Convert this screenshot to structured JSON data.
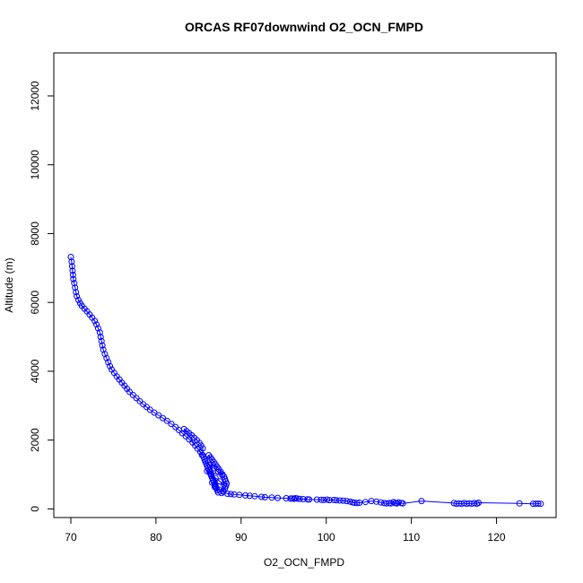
{
  "chart_data": {
    "type": "scatter",
    "title": "ORCAS RF07downwind O2_OCN_FMPD",
    "xlabel": "O2_OCN_FMPD",
    "ylabel": "Altitude (m)",
    "xlim": [
      68,
      127
    ],
    "ylim": [
      -250,
      13250
    ],
    "xticks": [
      70,
      80,
      90,
      100,
      110,
      120
    ],
    "yticks": [
      0,
      2000,
      4000,
      6000,
      8000,
      10000,
      12000
    ],
    "grid": false,
    "legend": "none",
    "marker": "open-circle",
    "connected_line": true,
    "series": [
      {
        "color": "#0000ff",
        "points": [
          [
            70.0,
            7320
          ],
          [
            70.1,
            7180
          ],
          [
            70.15,
            7050
          ],
          [
            70.2,
            6920
          ],
          [
            70.25,
            6800
          ],
          [
            70.3,
            6680
          ],
          [
            70.4,
            6560
          ],
          [
            70.5,
            6430
          ],
          [
            70.6,
            6300
          ],
          [
            70.7,
            6180
          ],
          [
            70.9,
            6070
          ],
          [
            71.1,
            5980
          ],
          [
            71.3,
            5900
          ],
          [
            71.6,
            5820
          ],
          [
            71.9,
            5740
          ],
          [
            72.2,
            5650
          ],
          [
            72.5,
            5560
          ],
          [
            72.8,
            5460
          ],
          [
            73.0,
            5360
          ],
          [
            73.2,
            5250
          ],
          [
            73.4,
            5130
          ],
          [
            73.5,
            5000
          ],
          [
            73.6,
            4880
          ],
          [
            73.7,
            4750
          ],
          [
            73.8,
            4630
          ],
          [
            74.0,
            4500
          ],
          [
            74.2,
            4380
          ],
          [
            74.4,
            4260
          ],
          [
            74.6,
            4150
          ],
          [
            74.8,
            4050
          ],
          [
            75.1,
            3950
          ],
          [
            75.4,
            3850
          ],
          [
            75.7,
            3760
          ],
          [
            76.0,
            3670
          ],
          [
            76.3,
            3580
          ],
          [
            76.6,
            3490
          ],
          [
            76.9,
            3400
          ],
          [
            77.3,
            3310
          ],
          [
            77.7,
            3220
          ],
          [
            78.1,
            3130
          ],
          [
            78.5,
            3040
          ],
          [
            78.9,
            2960
          ],
          [
            79.3,
            2880
          ],
          [
            79.8,
            2800
          ],
          [
            80.3,
            2720
          ],
          [
            80.8,
            2640
          ],
          [
            81.3,
            2560
          ],
          [
            81.8,
            2470
          ],
          [
            82.3,
            2380
          ],
          [
            82.7,
            2290
          ],
          [
            83.1,
            2200
          ],
          [
            83.5,
            2110
          ],
          [
            83.9,
            2020
          ],
          [
            84.3,
            1930
          ],
          [
            84.6,
            1840
          ],
          [
            84.9,
            1750
          ],
          [
            85.2,
            1660
          ],
          [
            85.4,
            1570
          ],
          [
            83.3,
            2320
          ],
          [
            83.6,
            2260
          ],
          [
            83.9,
            2200
          ],
          [
            84.2,
            2140
          ],
          [
            84.5,
            2070
          ],
          [
            84.8,
            2000
          ],
          [
            85.1,
            1920
          ],
          [
            85.3,
            1840
          ],
          [
            85.5,
            1760
          ],
          [
            85.5,
            1560
          ],
          [
            85.6,
            1500
          ],
          [
            85.7,
            1440
          ],
          [
            85.8,
            1380
          ],
          [
            85.9,
            1320
          ],
          [
            86.0,
            1260
          ],
          [
            86.1,
            1200
          ],
          [
            86.2,
            1140
          ],
          [
            86.3,
            1080
          ],
          [
            86.4,
            1020
          ],
          [
            86.5,
            960
          ],
          [
            86.6,
            900
          ],
          [
            86.7,
            840
          ],
          [
            86.8,
            780
          ],
          [
            86.9,
            720
          ],
          [
            87.0,
            660
          ],
          [
            87.1,
            600
          ],
          [
            87.2,
            540
          ],
          [
            87.3,
            480
          ],
          [
            86.2,
            1560
          ],
          [
            86.4,
            1500
          ],
          [
            86.6,
            1430
          ],
          [
            86.8,
            1360
          ],
          [
            87.0,
            1290
          ],
          [
            87.2,
            1220
          ],
          [
            87.4,
            1150
          ],
          [
            87.6,
            1080
          ],
          [
            87.8,
            1010
          ],
          [
            88.0,
            940
          ],
          [
            88.1,
            870
          ],
          [
            88.2,
            800
          ],
          [
            88.3,
            730
          ],
          [
            88.2,
            660
          ],
          [
            88.1,
            590
          ],
          [
            87.9,
            520
          ],
          [
            87.7,
            460
          ],
          [
            85.8,
            1380
          ],
          [
            86.3,
            1280
          ],
          [
            86.8,
            1180
          ],
          [
            87.3,
            1080
          ],
          [
            87.8,
            980
          ],
          [
            86.0,
            1100
          ],
          [
            86.5,
            1000
          ],
          [
            87.0,
            900
          ],
          [
            87.5,
            800
          ],
          [
            88.0,
            700
          ],
          [
            86.6,
            760
          ],
          [
            86.9,
            640
          ],
          [
            87.4,
            560
          ],
          [
            87.9,
            500
          ],
          [
            88.4,
            440
          ],
          [
            88.8,
            430
          ],
          [
            89.2,
            420
          ],
          [
            89.8,
            410
          ],
          [
            90.5,
            390
          ],
          [
            91.0,
            380
          ],
          [
            91.6,
            370
          ],
          [
            92.4,
            350
          ],
          [
            92.8,
            340
          ],
          [
            93.6,
            330
          ],
          [
            94.3,
            320
          ],
          [
            95.3,
            310
          ],
          [
            95.8,
            300
          ],
          [
            96.0,
            305
          ],
          [
            96.2,
            295
          ],
          [
            96.4,
            310
          ],
          [
            96.6,
            300
          ],
          [
            96.9,
            290
          ],
          [
            97.3,
            285
          ],
          [
            97.8,
            280
          ],
          [
            98.0,
            275
          ],
          [
            98.9,
            270
          ],
          [
            99.4,
            265
          ],
          [
            99.7,
            260
          ],
          [
            100.1,
            270
          ],
          [
            100.4,
            255
          ],
          [
            100.9,
            260
          ],
          [
            101.2,
            250
          ],
          [
            101.6,
            245
          ],
          [
            102.0,
            240
          ],
          [
            102.4,
            230
          ],
          [
            102.8,
            210
          ],
          [
            103.1,
            190
          ],
          [
            103.3,
            180
          ],
          [
            103.6,
            170
          ],
          [
            103.9,
            180
          ],
          [
            104.6,
            200
          ],
          [
            105.3,
            230
          ],
          [
            105.9,
            210
          ],
          [
            106.4,
            190
          ],
          [
            106.8,
            170
          ],
          [
            107.1,
            160
          ],
          [
            107.4,
            170
          ],
          [
            107.6,
            160
          ],
          [
            107.9,
            200
          ],
          [
            108.1,
            170
          ],
          [
            108.3,
            160
          ],
          [
            108.5,
            190
          ],
          [
            108.8,
            170
          ],
          [
            109.0,
            160
          ],
          [
            111.2,
            230
          ],
          [
            115.0,
            170
          ],
          [
            115.3,
            150
          ],
          [
            115.6,
            160
          ],
          [
            115.9,
            150
          ],
          [
            116.2,
            170
          ],
          [
            116.5,
            150
          ],
          [
            116.8,
            165
          ],
          [
            117.1,
            150
          ],
          [
            117.4,
            170
          ],
          [
            117.7,
            155
          ],
          [
            117.9,
            180
          ],
          [
            122.7,
            160
          ],
          [
            124.3,
            150
          ],
          [
            124.6,
            150
          ],
          [
            124.9,
            155
          ],
          [
            125.2,
            150
          ]
        ]
      }
    ]
  }
}
